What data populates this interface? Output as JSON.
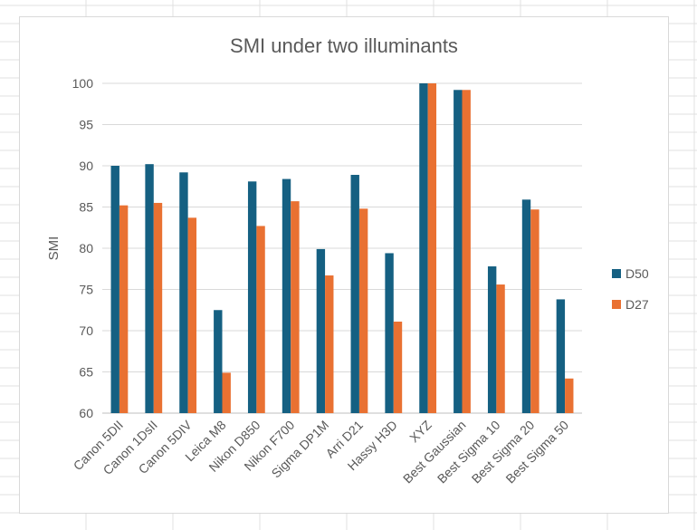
{
  "chart_data": {
    "type": "bar",
    "title": "SMI under two illuminants",
    "xlabel": "",
    "ylabel": "SMI",
    "ylim": [
      60,
      100
    ],
    "yticks": [
      60,
      65,
      70,
      75,
      80,
      85,
      90,
      95,
      100
    ],
    "grid": true,
    "legend_position": "right",
    "categories": [
      "Canon 5DII",
      "Canon 1DsII",
      "Canon 5DIV",
      "Leica M8",
      "Nikon D850",
      "Nikon F700",
      "Sigma DP1M",
      "Arri D21",
      "Hassy H3D",
      "XYZ",
      "Best Gaussian",
      "Best Sigma 10",
      "Best Sigma 20",
      "Best Sigma 50"
    ],
    "series": [
      {
        "name": "D50",
        "color": "#156082",
        "values": [
          90.0,
          90.2,
          89.2,
          72.5,
          88.1,
          88.4,
          79.9,
          88.9,
          79.4,
          100.0,
          99.2,
          77.8,
          85.9,
          73.8
        ]
      },
      {
        "name": "D27",
        "color": "#E97132",
        "values": [
          85.2,
          85.5,
          83.7,
          64.9,
          82.7,
          85.7,
          76.7,
          84.8,
          71.1,
          100.0,
          99.2,
          75.6,
          84.7,
          64.2
        ]
      }
    ]
  }
}
